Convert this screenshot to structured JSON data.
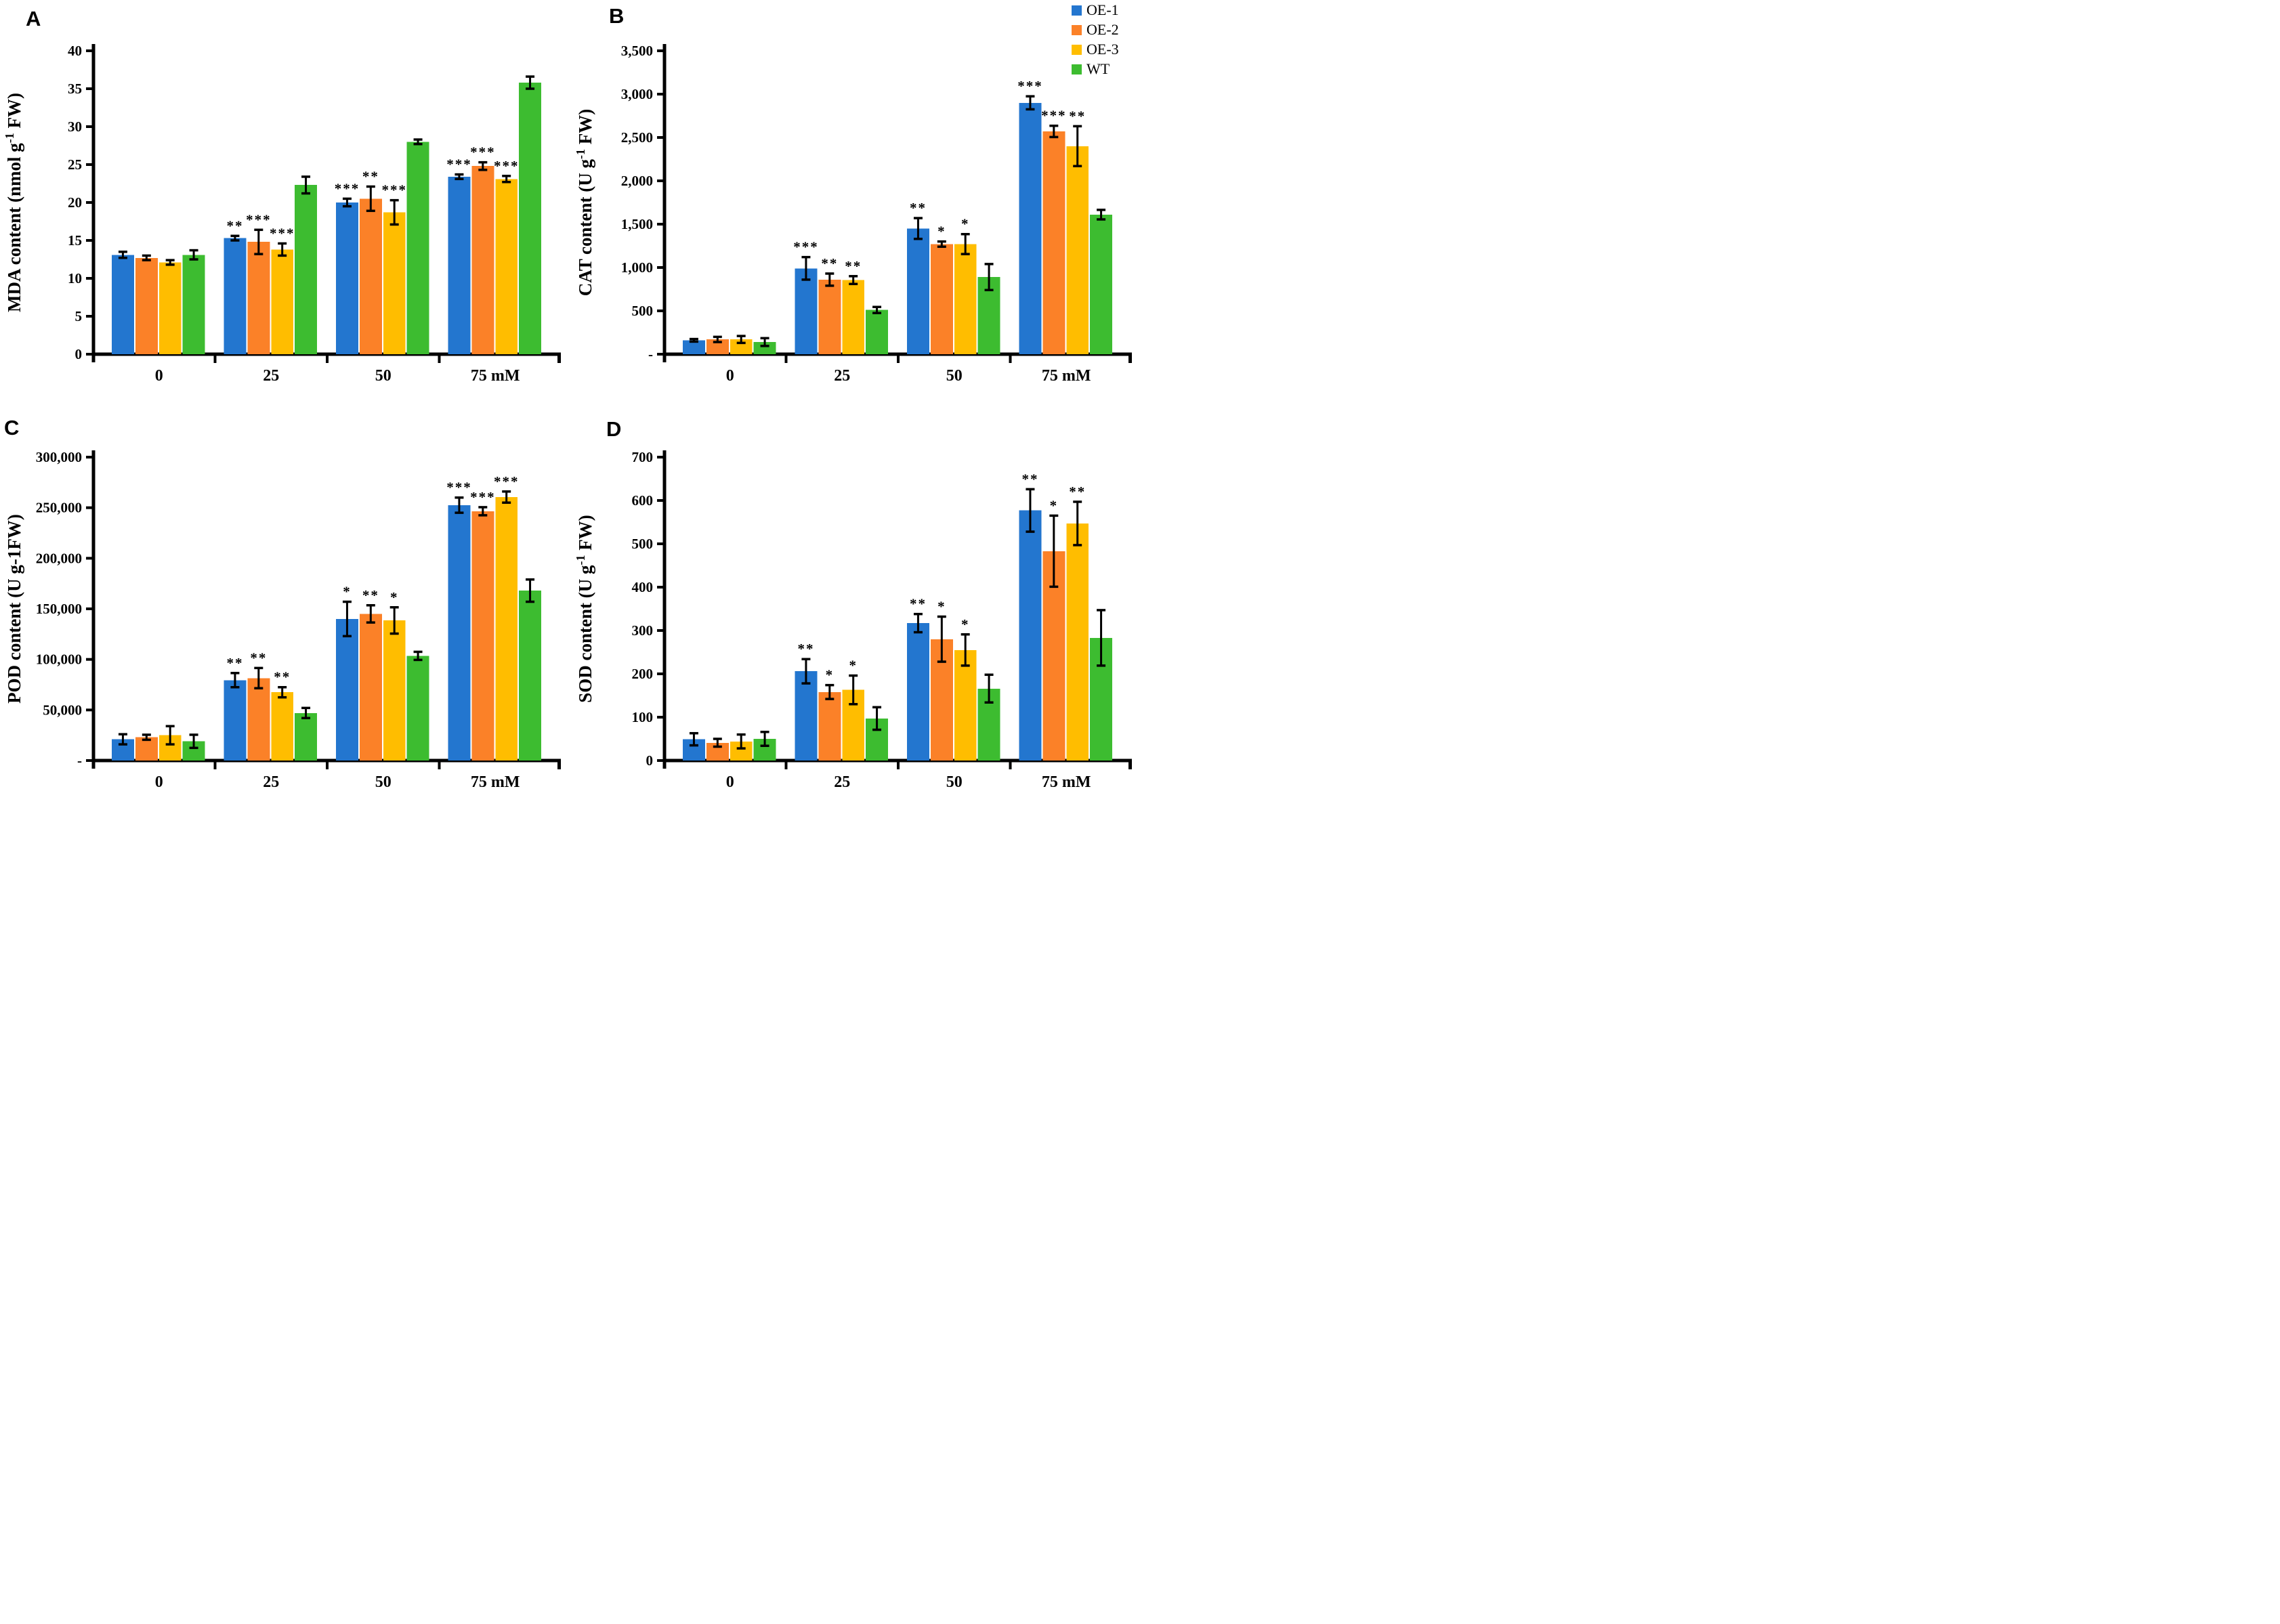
{
  "figure": {
    "background": "#FFFFFF",
    "series_colors": {
      "OE-1": "#2376CF",
      "OE-2": "#FB8128",
      "OE-3": "#FFBD00",
      "WT": "#3DBC30"
    }
  },
  "legend": {
    "items": [
      {
        "label": "OE-1",
        "color": "#2376CF"
      },
      {
        "label": "OE-2",
        "color": "#FB8128"
      },
      {
        "label": "OE-3",
        "color": "#FFBD00"
      },
      {
        "label": "WT",
        "color": "#3DBC30"
      }
    ]
  },
  "chart_data": [
    {
      "panel": "A",
      "type": "bar",
      "ylabel": {
        "pre": "MDA content (nmol g",
        "sup": "-1",
        "post": " FW)"
      },
      "categories": [
        "0",
        "25",
        "50",
        "75 mM"
      ],
      "ylim": [
        0,
        40
      ],
      "ytick_labels": [
        "0",
        "5",
        "10",
        "15",
        "20",
        "25",
        "30",
        "35",
        "40"
      ],
      "grid": false,
      "series": [
        {
          "name": "OE-1",
          "color": "#2376CF",
          "values": [
            13.1,
            15.3,
            20.0,
            23.4
          ],
          "errors": [
            0.4,
            0.3,
            0.5,
            0.3
          ],
          "sig": [
            "",
            "**",
            "***",
            "***"
          ]
        },
        {
          "name": "OE-2",
          "color": "#FB8128",
          "values": [
            12.7,
            14.8,
            20.5,
            24.8
          ],
          "errors": [
            0.3,
            1.6,
            1.6,
            0.5
          ],
          "sig": [
            "",
            "***",
            "**",
            "***"
          ]
        },
        {
          "name": "OE-3",
          "color": "#FFBD00",
          "values": [
            12.1,
            13.8,
            18.7,
            23.1
          ],
          "errors": [
            0.3,
            0.8,
            1.6,
            0.4
          ],
          "sig": [
            "",
            "***",
            "***",
            "***"
          ]
        },
        {
          "name": "WT",
          "color": "#3DBC30",
          "values": [
            13.1,
            22.3,
            28.0,
            35.8
          ],
          "errors": [
            0.6,
            1.1,
            0.3,
            0.8
          ],
          "sig": [
            "",
            "",
            "",
            ""
          ]
        }
      ]
    },
    {
      "panel": "B",
      "type": "bar",
      "ylabel": {
        "pre": "CAT content (U g",
        "sup": "-1",
        "post": " FW)"
      },
      "categories": [
        "0",
        "25",
        "50",
        "75 mM"
      ],
      "ylim": [
        0,
        3500
      ],
      "ytick_labels": [
        "-",
        "500",
        "1,000",
        "1,500",
        "2,000",
        "2,500",
        "3,000",
        "3,500"
      ],
      "grid": false,
      "series": [
        {
          "name": "OE-1",
          "color": "#2376CF",
          "values": [
            160,
            990,
            1450,
            2900
          ],
          "errors": [
            15,
            130,
            120,
            75
          ],
          "sig": [
            "",
            "***",
            "**",
            "***"
          ]
        },
        {
          "name": "OE-2",
          "color": "#FB8128",
          "values": [
            170,
            860,
            1270,
            2570
          ],
          "errors": [
            30,
            70,
            30,
            65
          ],
          "sig": [
            "",
            "**",
            "*",
            "***"
          ]
        },
        {
          "name": "OE-3",
          "color": "#FFBD00",
          "values": [
            170,
            855,
            1270,
            2400
          ],
          "errors": [
            40,
            45,
            115,
            230
          ],
          "sig": [
            "",
            "**",
            "*",
            "**"
          ]
        },
        {
          "name": "WT",
          "color": "#3DBC30",
          "values": [
            140,
            510,
            890,
            1610
          ],
          "errors": [
            45,
            35,
            150,
            55
          ],
          "sig": [
            "",
            "",
            "",
            ""
          ]
        }
      ]
    },
    {
      "panel": "C",
      "type": "bar",
      "ylabel": {
        "pre": "POD content (U g-1FW)",
        "sup": "",
        "post": ""
      },
      "categories": [
        "0",
        "25",
        "50",
        "75 mM"
      ],
      "ylim": [
        0,
        300000
      ],
      "ytick_labels": [
        "-",
        "50,000",
        "100,000",
        "150,000",
        "200,000",
        "250,000",
        "300,000"
      ],
      "grid": false,
      "series": [
        {
          "name": "OE-1",
          "color": "#2376CF",
          "values": [
            21000,
            79500,
            140000,
            252500
          ],
          "errors": [
            5000,
            7000,
            17000,
            7500
          ],
          "sig": [
            "",
            "**",
            "*",
            "***"
          ]
        },
        {
          "name": "OE-2",
          "color": "#FB8128",
          "values": [
            23000,
            81500,
            145000,
            246500
          ],
          "errors": [
            2500,
            10000,
            8500,
            4000
          ],
          "sig": [
            "",
            "**",
            "**",
            "***"
          ]
        },
        {
          "name": "OE-3",
          "color": "#FFBD00",
          "values": [
            25000,
            67500,
            138500,
            260500
          ],
          "errors": [
            9000,
            5000,
            13000,
            5500
          ],
          "sig": [
            "",
            "**",
            "*",
            "***"
          ]
        },
        {
          "name": "WT",
          "color": "#3DBC30",
          "values": [
            19000,
            47000,
            103500,
            168000
          ],
          "errors": [
            6500,
            5000,
            4000,
            11000
          ],
          "sig": [
            "",
            "",
            "",
            ""
          ]
        }
      ]
    },
    {
      "panel": "D",
      "type": "bar",
      "ylabel": {
        "pre": "SOD content (U g",
        "sup": "-1",
        "post": " FW)"
      },
      "categories": [
        "0",
        "25",
        "50",
        "75 mM"
      ],
      "ylim": [
        0,
        700
      ],
      "ytick_labels": [
        "0",
        "100",
        "200",
        "300",
        "400",
        "500",
        "600",
        "700"
      ],
      "grid": false,
      "series": [
        {
          "name": "OE-1",
          "color": "#2376CF",
          "values": [
            49,
            206,
            317,
            577
          ],
          "errors": [
            14,
            28,
            21,
            49
          ],
          "sig": [
            "",
            "**",
            "**",
            "**"
          ]
        },
        {
          "name": "OE-2",
          "color": "#FB8128",
          "values": [
            41,
            158,
            280,
            483
          ],
          "errors": [
            9,
            16,
            52,
            82
          ],
          "sig": [
            "",
            "*",
            "*",
            "*"
          ]
        },
        {
          "name": "OE-3",
          "color": "#FFBD00",
          "values": [
            44,
            163,
            255,
            547
          ],
          "errors": [
            16,
            33,
            36,
            50
          ],
          "sig": [
            "",
            "*",
            "*",
            "**"
          ]
        },
        {
          "name": "WT",
          "color": "#3DBC30",
          "values": [
            50,
            97,
            166,
            283
          ],
          "errors": [
            16,
            26,
            32,
            64
          ],
          "sig": [
            "",
            "",
            "",
            ""
          ]
        }
      ]
    }
  ]
}
